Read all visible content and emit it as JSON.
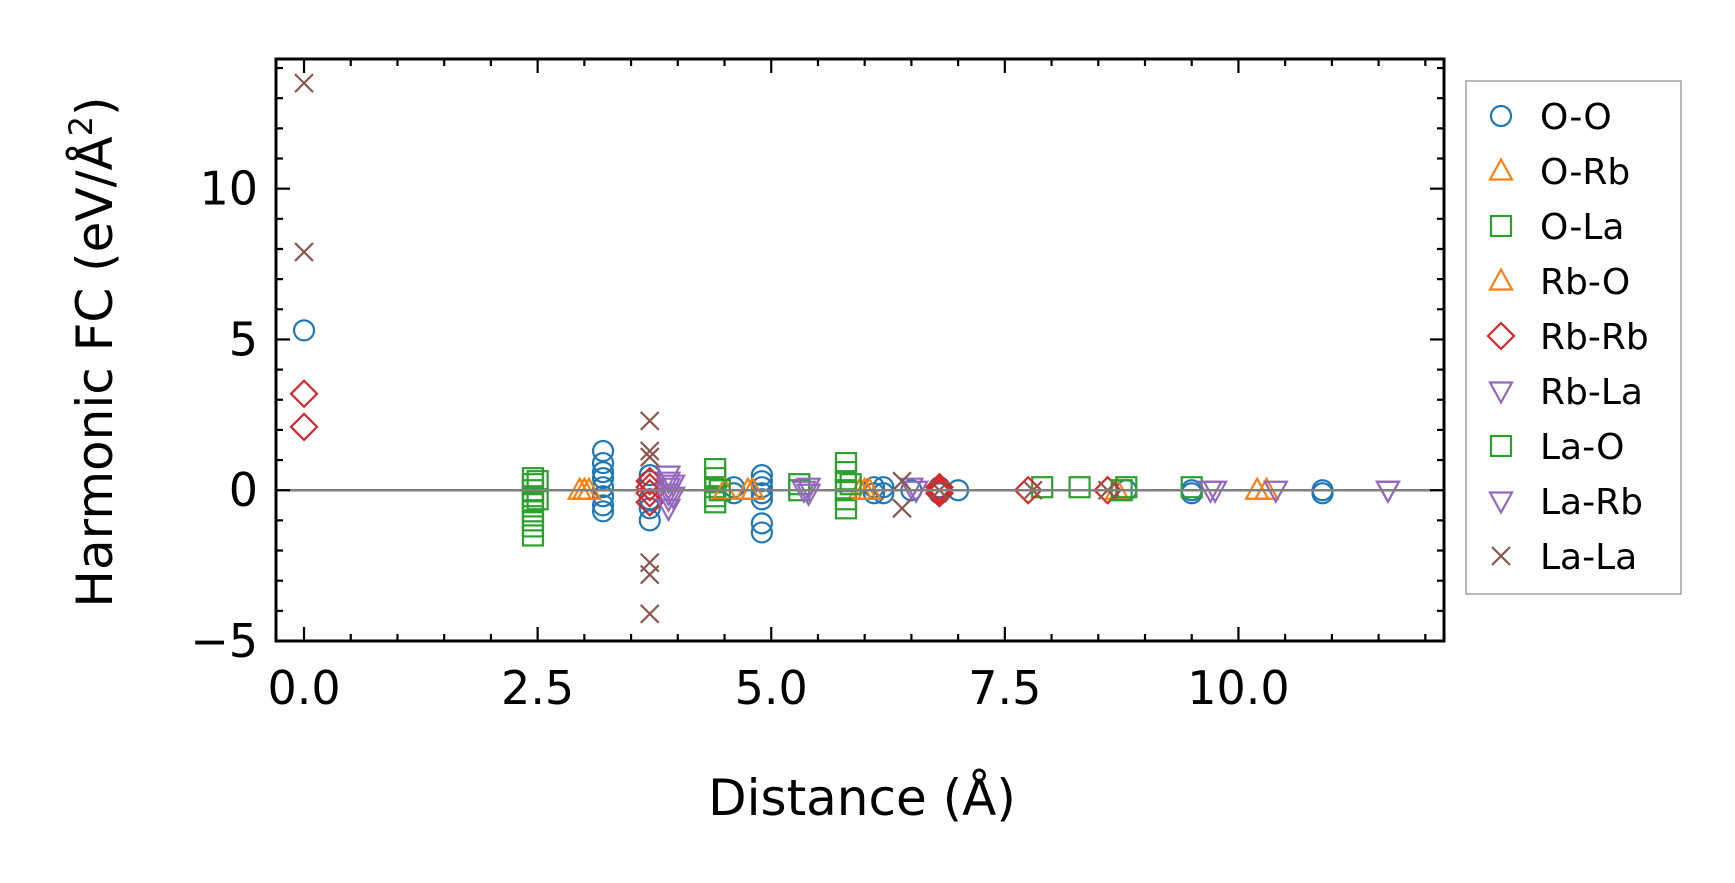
{
  "chart_data": {
    "type": "scatter",
    "title": "",
    "xlabel": "Distance (Å)",
    "ylabel_main": "Harmonic FC (eV/Å",
    "ylabel_sup": "2",
    "ylabel_close": ")",
    "xlim": [
      -0.3,
      12.2
    ],
    "ylim": [
      -5,
      14.3
    ],
    "xticks": [
      {
        "value": 0,
        "label": "0.0"
      },
      {
        "value": 2.5,
        "label": "2.5"
      },
      {
        "value": 5,
        "label": "5.0"
      },
      {
        "value": 7.5,
        "label": "7.5"
      },
      {
        "value": 10,
        "label": "10.0"
      }
    ],
    "yticks": [
      {
        "value": -5,
        "label": "−5"
      },
      {
        "value": 0,
        "label": "0"
      },
      {
        "value": 5,
        "label": "5"
      },
      {
        "value": 10,
        "label": "10"
      }
    ],
    "zero_line": true,
    "grid": false,
    "legend_position": "outside-right",
    "series": [
      {
        "name": "O-O",
        "marker": "circle",
        "color": "#1f77b4",
        "points": [
          [
            0,
            5.3
          ],
          [
            3.2,
            1.3
          ],
          [
            3.2,
            0.9
          ],
          [
            3.2,
            0.6
          ],
          [
            3.2,
            0.4
          ],
          [
            3.2,
            0.1
          ],
          [
            3.2,
            -0.2
          ],
          [
            3.2,
            -0.5
          ],
          [
            3.2,
            -0.7
          ],
          [
            3.7,
            0.5
          ],
          [
            3.7,
            0.3
          ],
          [
            3.7,
            -0.3
          ],
          [
            3.7,
            -0.6
          ],
          [
            3.7,
            -1.0
          ],
          [
            4.6,
            0.1
          ],
          [
            4.6,
            -0.1
          ],
          [
            4.9,
            0.5
          ],
          [
            4.9,
            0.3
          ],
          [
            4.9,
            0.1
          ],
          [
            4.9,
            -0.1
          ],
          [
            4.9,
            -0.3
          ],
          [
            4.9,
            -1.1
          ],
          [
            4.9,
            -1.4
          ],
          [
            6.1,
            0.1
          ],
          [
            6.1,
            -0.1
          ],
          [
            6.2,
            0.1
          ],
          [
            6.2,
            -0.1
          ],
          [
            6.5,
            0.0
          ],
          [
            6.8,
            0.1
          ],
          [
            6.8,
            -0.1
          ],
          [
            7.0,
            0.0
          ],
          [
            8.8,
            0.0
          ],
          [
            9.5,
            0.0
          ],
          [
            9.5,
            -0.1
          ],
          [
            10.9,
            0.0
          ],
          [
            10.9,
            -0.1
          ]
        ]
      },
      {
        "name": "O-Rb",
        "marker": "triangle-up",
        "color": "#ff7f0e",
        "points": [
          [
            2.95,
            0.0
          ],
          [
            3.05,
            0.0
          ],
          [
            4.75,
            0.0
          ],
          [
            5.95,
            0.0
          ],
          [
            6.05,
            0.0
          ],
          [
            8.7,
            0.0
          ],
          [
            10.2,
            0.0
          ]
        ]
      },
      {
        "name": "O-La",
        "marker": "square",
        "color": "#2ca02c",
        "points": [
          [
            2.45,
            0.4
          ],
          [
            2.45,
            0.2
          ],
          [
            2.45,
            0.0
          ],
          [
            2.45,
            -0.2
          ],
          [
            2.45,
            -0.4
          ],
          [
            2.45,
            -0.7
          ],
          [
            2.45,
            -1.0
          ],
          [
            2.45,
            -1.2
          ],
          [
            2.45,
            -1.5
          ],
          [
            4.4,
            0.7
          ],
          [
            4.4,
            0.4
          ],
          [
            4.4,
            0.1
          ],
          [
            4.4,
            -0.2
          ],
          [
            4.4,
            -0.4
          ],
          [
            5.3,
            0.2
          ],
          [
            5.3,
            0.0
          ],
          [
            5.8,
            0.9
          ],
          [
            5.8,
            0.6
          ],
          [
            5.8,
            0.3
          ],
          [
            5.8,
            0.0
          ],
          [
            5.8,
            -0.3
          ],
          [
            5.8,
            -0.6
          ],
          [
            7.9,
            0.1
          ],
          [
            8.3,
            0.1
          ],
          [
            8.8,
            0.1
          ],
          [
            9.5,
            0.1
          ]
        ]
      },
      {
        "name": "Rb-O",
        "marker": "triangle-up",
        "color": "#ff7f0e",
        "points": [
          [
            3.0,
            0.0
          ],
          [
            4.5,
            0.0
          ],
          [
            4.8,
            0.0
          ],
          [
            6.0,
            0.0
          ],
          [
            10.3,
            0.0
          ]
        ]
      },
      {
        "name": "Rb-Rb",
        "marker": "diamond",
        "color": "#d62728",
        "points": [
          [
            0,
            3.2
          ],
          [
            0,
            2.1
          ],
          [
            3.7,
            0.3
          ],
          [
            3.7,
            0.1
          ],
          [
            3.7,
            -0.1
          ],
          [
            3.7,
            -0.4
          ],
          [
            6.8,
            0.1
          ],
          [
            6.8,
            0.0
          ],
          [
            6.8,
            -0.1
          ],
          [
            7.75,
            0.0
          ],
          [
            8.6,
            0.0
          ]
        ]
      },
      {
        "name": "Rb-La",
        "marker": "triangle-down",
        "color": "#9467bd",
        "points": [
          [
            3.9,
            0.5
          ],
          [
            3.9,
            0.3
          ],
          [
            3.9,
            0.1
          ],
          [
            3.9,
            -0.1
          ],
          [
            3.9,
            -0.3
          ],
          [
            3.9,
            -0.6
          ],
          [
            5.4,
            0.1
          ],
          [
            5.4,
            -0.1
          ],
          [
            6.5,
            0.1
          ],
          [
            9.7,
            0.0
          ],
          [
            10.4,
            0.0
          ],
          [
            11.6,
            0.0
          ]
        ]
      },
      {
        "name": "La-O",
        "marker": "square",
        "color": "#2ca02c",
        "points": [
          [
            2.5,
            0.3
          ],
          [
            2.5,
            -0.3
          ],
          [
            4.45,
            0.0
          ],
          [
            5.85,
            0.2
          ],
          [
            8.75,
            0.0
          ]
        ]
      },
      {
        "name": "La-Rb",
        "marker": "triangle-down",
        "color": "#9467bd",
        "points": [
          [
            3.95,
            0.2
          ],
          [
            3.95,
            -0.2
          ],
          [
            5.35,
            0.0
          ],
          [
            6.55,
            0.0
          ],
          [
            9.75,
            0.0
          ],
          [
            11.6,
            0.0
          ]
        ]
      },
      {
        "name": "La-La",
        "marker": "x",
        "color": "#8c564b",
        "points": [
          [
            0,
            13.5
          ],
          [
            0,
            7.9
          ],
          [
            3.7,
            2.3
          ],
          [
            3.7,
            1.3
          ],
          [
            3.7,
            1.1
          ],
          [
            3.7,
            -2.4
          ],
          [
            3.7,
            -2.8
          ],
          [
            3.7,
            -4.1
          ],
          [
            6.4,
            0.3
          ],
          [
            6.4,
            -0.6
          ],
          [
            6.8,
            0.0
          ],
          [
            7.8,
            0.0
          ],
          [
            8.6,
            0.0
          ]
        ]
      }
    ]
  }
}
